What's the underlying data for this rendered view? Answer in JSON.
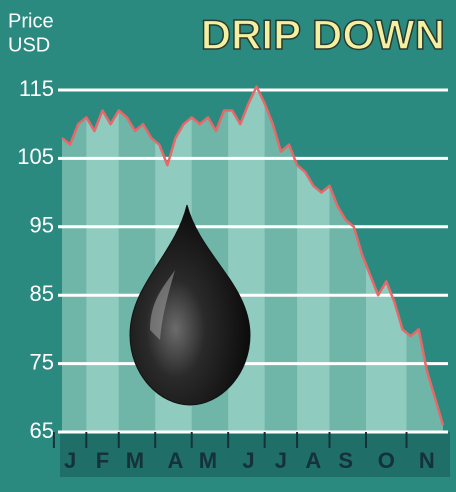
{
  "chart_data": {
    "type": "line",
    "title": "DRIP DOWN",
    "ylabel": [
      "Price",
      "USD"
    ],
    "categories": [
      null,
      "J",
      null,
      null,
      null,
      "F",
      null,
      null,
      null,
      "M",
      null,
      null,
      null,
      null,
      "A",
      null,
      null,
      null,
      "M",
      null,
      null,
      null,
      null,
      "J",
      null,
      null,
      null,
      "J",
      null,
      null,
      null,
      "A",
      null,
      null,
      null,
      "S",
      null,
      null,
      null,
      null,
      "O",
      null,
      null,
      null,
      null,
      "N",
      null,
      null
    ],
    "series": [
      {
        "name": "Price",
        "color": "#e8686a",
        "values": [
          108,
          107,
          110,
          111,
          109,
          112,
          110,
          112,
          111,
          109,
          110,
          108,
          107,
          104,
          108,
          110,
          111,
          110,
          111,
          109,
          112,
          112,
          110,
          113,
          115.5,
          113,
          110,
          106,
          107,
          104,
          103,
          101,
          100,
          101,
          98,
          96,
          95,
          91,
          88,
          85,
          87,
          84,
          80,
          79,
          80,
          74,
          70,
          66
        ]
      }
    ],
    "ylim": [
      65,
      115
    ],
    "yticks": [
      65,
      75,
      85,
      95,
      105,
      115
    ],
    "grid": true
  }
}
